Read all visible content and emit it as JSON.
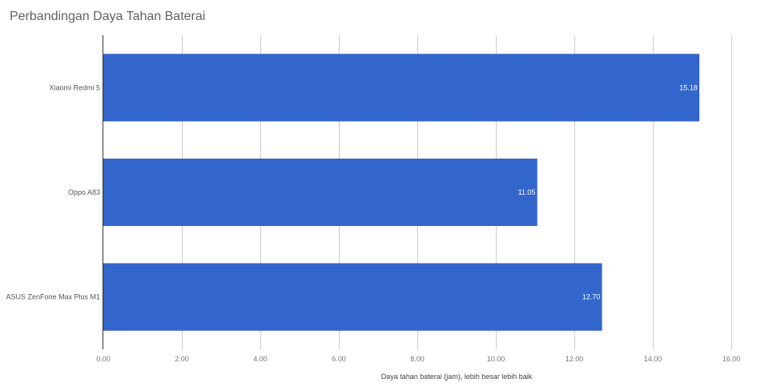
{
  "chart_data": {
    "type": "bar",
    "orientation": "horizontal",
    "title": "Perbandingan Daya Tahan Baterai",
    "xlabel": "Daya tahan baterai (jam), lebih besar lebih baik",
    "ylabel": "",
    "categories": [
      "Xiaomi Redmi 5",
      "Oppo A83",
      "ASUS ZenFone Max Plus M1"
    ],
    "values": [
      15.18,
      11.05,
      12.7
    ],
    "value_labels": [
      "15.18",
      "11.05",
      "12.70"
    ],
    "xlim": [
      0,
      16
    ],
    "x_ticks": [
      0,
      2,
      4,
      6,
      8,
      10,
      12,
      14,
      16
    ],
    "x_tick_labels": [
      "0.00",
      "2.00",
      "4.00",
      "6.00",
      "8.00",
      "10.00",
      "12.00",
      "14.00",
      "16.00"
    ],
    "grid": true,
    "legend": "none",
    "bar_color": "#3366cc",
    "grid_color": "#cccccc",
    "axis_color": "#333333"
  }
}
